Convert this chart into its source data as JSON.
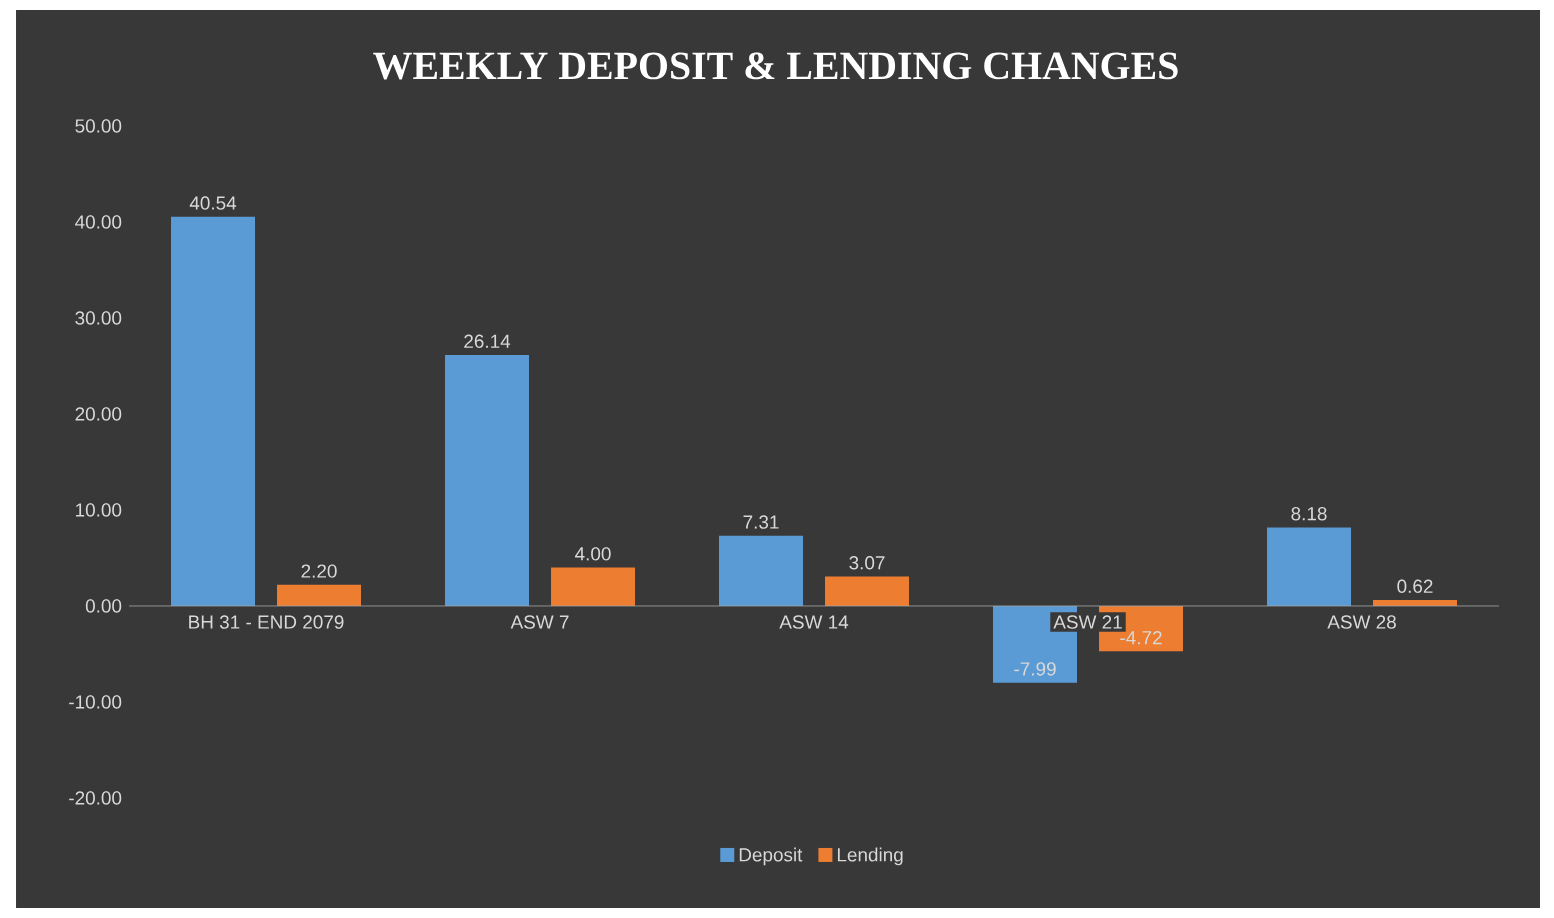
{
  "chart_data": {
    "type": "bar",
    "title": "WEEKLY DEPOSIT & LENDING CHANGES",
    "categories": [
      "BH 31 - END 2079",
      "ASW 7",
      "ASW 14",
      "ASW 21",
      "ASW 28"
    ],
    "series": [
      {
        "name": "Deposit",
        "color": "#5b9bd5",
        "values": [
          40.54,
          26.14,
          7.31,
          -7.99,
          8.18
        ],
        "value_labels": [
          "40.54",
          "26.14",
          "7.31",
          "-7.99",
          "8.18"
        ]
      },
      {
        "name": "Lending",
        "color": "#ed7d31",
        "values": [
          2.2,
          4.0,
          3.07,
          -4.72,
          0.62
        ],
        "value_labels": [
          "2.20",
          "4.00",
          "3.07",
          "-4.72",
          "0.62"
        ]
      }
    ],
    "ylim": [
      -20,
      50
    ],
    "yticks": [
      {
        "value": -20,
        "label": "-20.00"
      },
      {
        "value": -10,
        "label": "-10.00"
      },
      {
        "value": 0,
        "label": "0.00"
      },
      {
        "value": 10,
        "label": "10.00"
      },
      {
        "value": 20,
        "label": "20.00"
      },
      {
        "value": 30,
        "label": "30.00"
      },
      {
        "value": 40,
        "label": "40.00"
      },
      {
        "value": 50,
        "label": "50.00"
      }
    ],
    "legend": "bottom"
  }
}
